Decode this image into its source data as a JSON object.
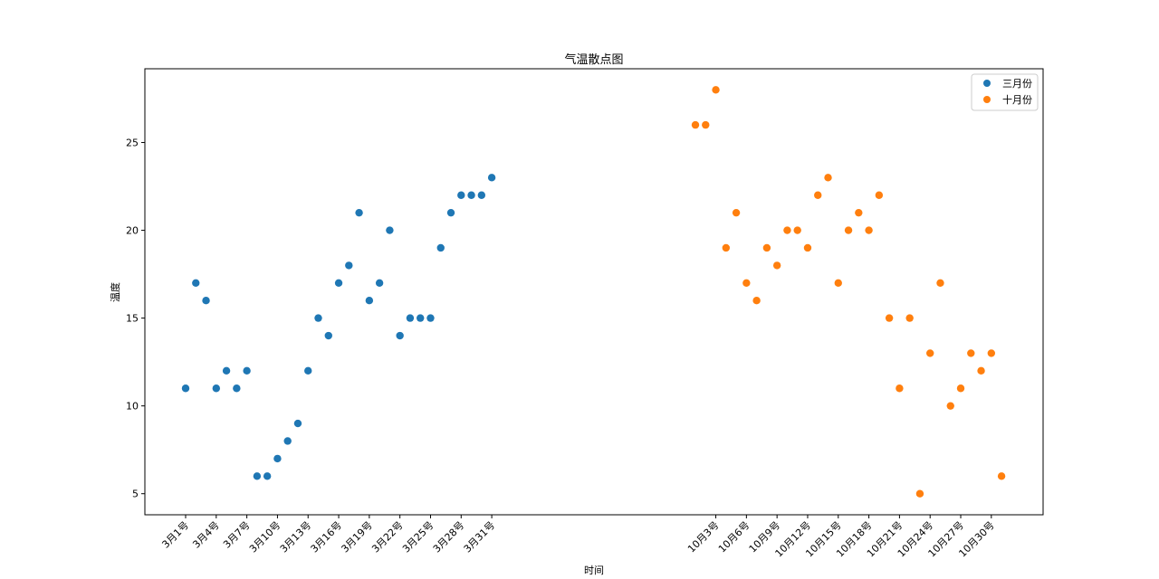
{
  "chart_data": {
    "type": "scatter",
    "title": "气温散点图",
    "xlabel": "时间",
    "ylabel": "温度",
    "ylim": [
      3.8,
      29.2
    ],
    "yticks": [
      5,
      10,
      15,
      20,
      25
    ],
    "grid": false,
    "legend_position": "top-right",
    "series": [
      {
        "name": "三月份",
        "color": "#1f77b4",
        "x": [
          "3月1号",
          "3月2号",
          "3月3号",
          "3月4号",
          "3月5号",
          "3月6号",
          "3月7号",
          "3月8号",
          "3月9号",
          "3月10号",
          "3月11号",
          "3月12号",
          "3月13号",
          "3月14号",
          "3月15号",
          "3月16号",
          "3月17号",
          "3月18号",
          "3月19号",
          "3月20号",
          "3月21号",
          "3月22号",
          "3月23号",
          "3月24号",
          "3月25号",
          "3月26号",
          "3月27号",
          "3月28号",
          "3月29号",
          "3月30号",
          "3月31号"
        ],
        "values": [
          11,
          17,
          16,
          11,
          12,
          11,
          12,
          6,
          6,
          7,
          8,
          9,
          12,
          15,
          14,
          17,
          18,
          21,
          16,
          17,
          20,
          14,
          15,
          15,
          15,
          19,
          21,
          22,
          22,
          22,
          23
        ]
      },
      {
        "name": "十月份",
        "color": "#ff7f0e",
        "x": [
          "10月1号",
          "10月2号",
          "10月3号",
          "10月4号",
          "10月5号",
          "10月6号",
          "10月7号",
          "10月8号",
          "10月9号",
          "10月10号",
          "10月11号",
          "10月12号",
          "10月13号",
          "10月14号",
          "10月15号",
          "10月16号",
          "10月17号",
          "10月18号",
          "10月19号",
          "10月20号",
          "10月21号",
          "10月22号",
          "10月23号",
          "10月24号",
          "10月25号",
          "10月26号",
          "10月27号",
          "10月28号",
          "10月29号",
          "10月30号",
          "10月31号"
        ],
        "values": [
          26,
          26,
          28,
          19,
          21,
          17,
          16,
          19,
          18,
          20,
          20,
          19,
          22,
          23,
          17,
          20,
          21,
          20,
          22,
          15,
          11,
          15,
          5,
          13,
          17,
          10,
          11,
          13,
          12,
          13,
          6
        ]
      }
    ],
    "xtick_labels": [
      "3月1号",
      "3月4号",
      "3月7号",
      "3月10号",
      "3月13号",
      "3月16号",
      "3月19号",
      "3月22号",
      "3月25号",
      "3月28号",
      "3月31号",
      "10月3号",
      "10月6号",
      "10月9号",
      "10月12号",
      "10月15号",
      "10月18号",
      "10月21号",
      "10月24号",
      "10月27号",
      "10月30号"
    ]
  }
}
